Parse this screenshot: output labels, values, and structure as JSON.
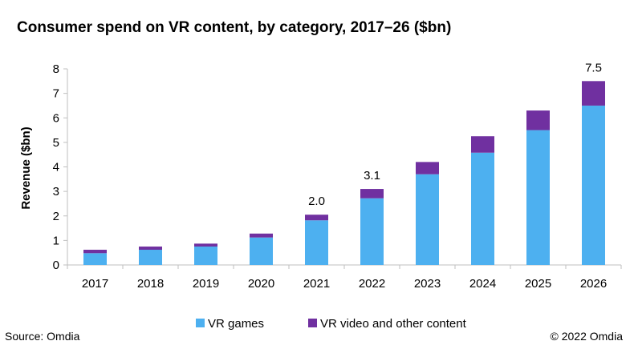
{
  "title": "Consumer spend on VR content, by category, 2017–26 ($bn)",
  "source": "Source: Omdia",
  "copyright": "© 2022 Omdia",
  "colors": {
    "games": "#4db0f0",
    "video": "#7030a0",
    "axis": "#bfbfbf"
  },
  "chart_data": {
    "type": "bar",
    "stacked": true,
    "categories": [
      "2017",
      "2018",
      "2019",
      "2020",
      "2021",
      "2022",
      "2023",
      "2024",
      "2025",
      "2026"
    ],
    "series": [
      {
        "name": "VR games",
        "values": [
          0.48,
          0.62,
          0.75,
          1.12,
          1.82,
          2.72,
          3.7,
          4.58,
          5.5,
          6.5
        ]
      },
      {
        "name": "VR video and other content",
        "values": [
          0.14,
          0.13,
          0.12,
          0.16,
          0.23,
          0.38,
          0.5,
          0.67,
          0.8,
          1.0
        ]
      }
    ],
    "data_labels": [
      {
        "category": "2021",
        "label": "2.0"
      },
      {
        "category": "2022",
        "label": "3.1"
      },
      {
        "category": "2026",
        "label": "7.5"
      }
    ],
    "ylabel": "Revenue ($bn)",
    "xlabel": "",
    "ylim": [
      0,
      8
    ],
    "yticks": [
      "0",
      "1",
      "2",
      "3",
      "4",
      "5",
      "6",
      "7",
      "8"
    ],
    "grid": false,
    "legend_position": "bottom"
  }
}
